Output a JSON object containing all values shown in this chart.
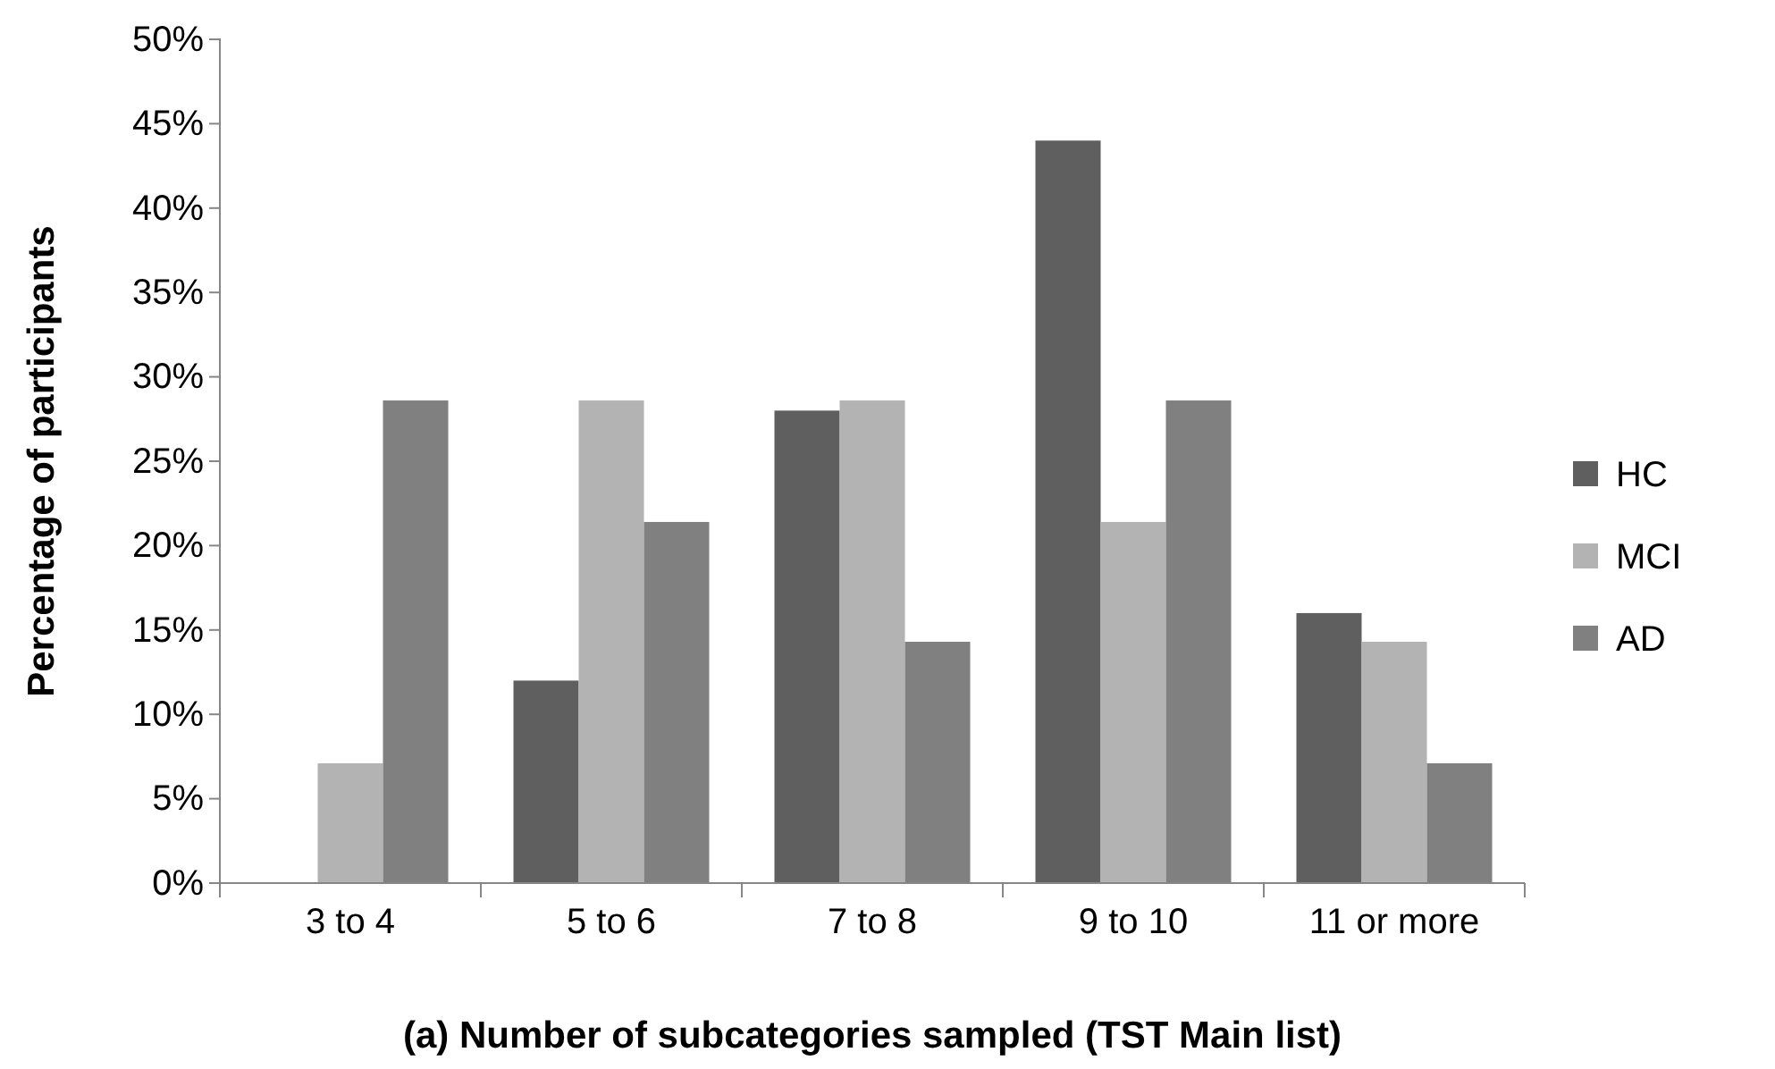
{
  "chart_data": {
    "type": "bar",
    "xlabel": "(a) Number of subcategories sampled (TST Main list)",
    "ylabel": "Percentage of participants",
    "categories": [
      "3 to 4",
      "5 to 6",
      "7 to 8",
      "9 to 10",
      "11 or more"
    ],
    "series": [
      {
        "name": "HC",
        "color": "#5f5f5f",
        "values": [
          0,
          12,
          28,
          44,
          16
        ]
      },
      {
        "name": "MCI",
        "color": "#b3b3b3",
        "values": [
          7.1,
          28.6,
          28.6,
          21.4,
          14.3
        ]
      },
      {
        "name": "AD",
        "color": "#808080",
        "values": [
          28.6,
          21.4,
          14.3,
          28.6,
          7.1
        ]
      }
    ],
    "ylim": [
      0,
      50
    ],
    "yticks": [
      {
        "value": 0,
        "label": "0%"
      },
      {
        "value": 5,
        "label": "5%"
      },
      {
        "value": 10,
        "label": "10%"
      },
      {
        "value": 15,
        "label": "15%"
      },
      {
        "value": 20,
        "label": "20%"
      },
      {
        "value": 25,
        "label": "25%"
      },
      {
        "value": 30,
        "label": "30%"
      },
      {
        "value": 35,
        "label": "35%"
      },
      {
        "value": 40,
        "label": "40%"
      },
      {
        "value": 45,
        "label": "45%"
      },
      {
        "value": 50,
        "label": "50%"
      }
    ],
    "grid": false,
    "legend": "right"
  }
}
